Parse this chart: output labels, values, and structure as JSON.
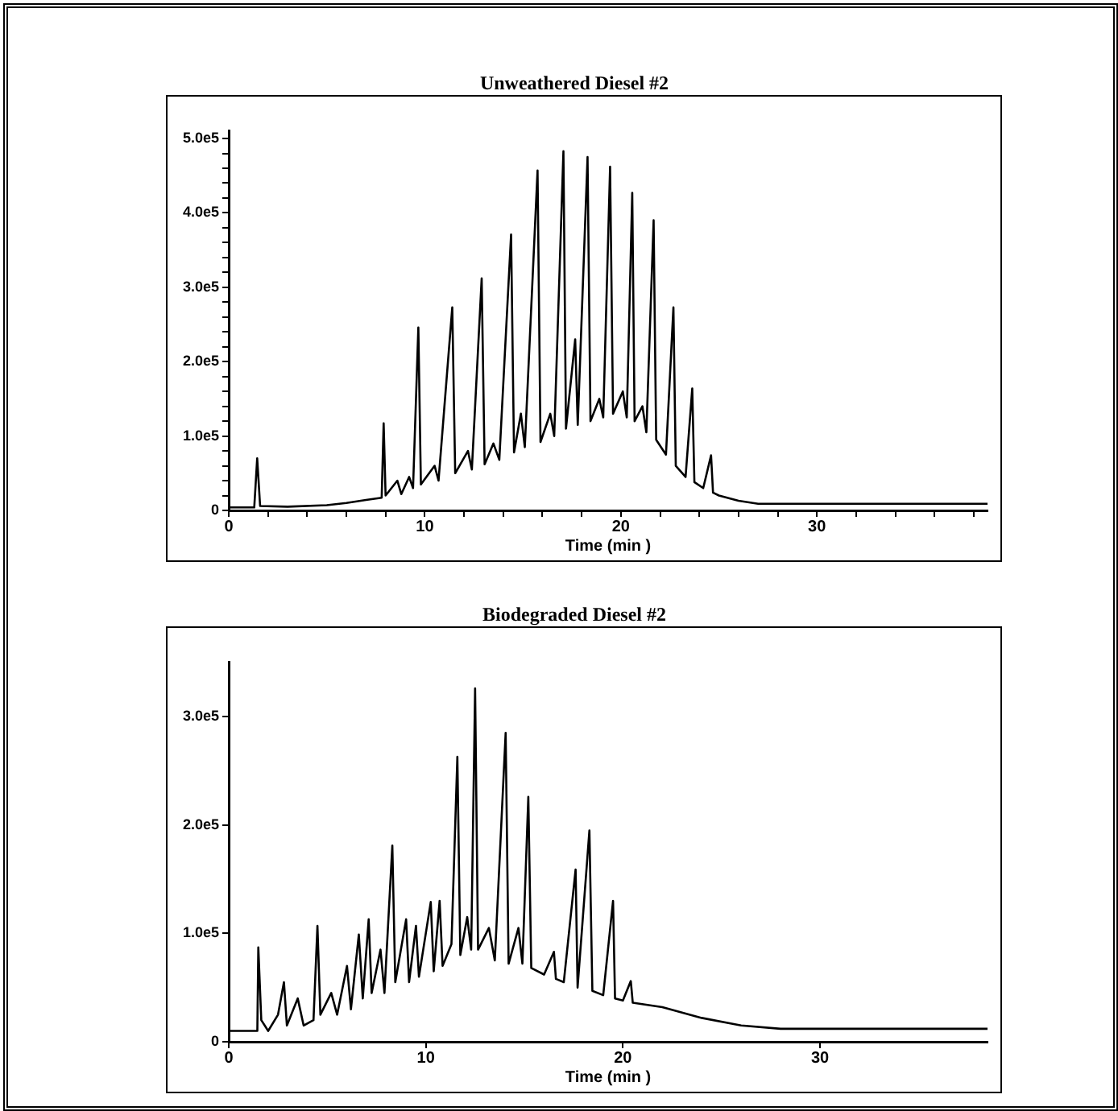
{
  "chart_data": [
    {
      "type": "line",
      "title": "Unweathered Diesel #2",
      "xlabel": "Time (min )",
      "xlim": [
        0,
        38.7
      ],
      "ylim": [
        0,
        510000
      ],
      "xticks": [
        0,
        {
          "value": 2,
          "label": null
        },
        {
          "value": 4,
          "label": null
        },
        {
          "value": 6,
          "label": null
        },
        {
          "value": 8,
          "label": null
        },
        10,
        {
          "value": 12,
          "label": null
        },
        {
          "value": 14,
          "label": null
        },
        {
          "value": 16,
          "label": null
        },
        {
          "value": 18,
          "label": null
        },
        20,
        {
          "value": 22,
          "label": null
        },
        {
          "value": 24,
          "label": null
        },
        {
          "value": 26,
          "label": null
        },
        {
          "value": 28,
          "label": null
        },
        30,
        {
          "value": 32,
          "label": null
        },
        {
          "value": 34,
          "label": null
        },
        {
          "value": 36,
          "label": null
        },
        {
          "value": 38,
          "label": null
        }
      ],
      "yticks": [
        0,
        {
          "value": 20000,
          "label": null
        },
        {
          "value": 40000,
          "label": null
        },
        {
          "value": 60000,
          "label": null
        },
        {
          "value": 80000,
          "label": null
        },
        {
          "value": 100000,
          "label": "1.0e5"
        },
        {
          "value": 120000,
          "label": null
        },
        {
          "value": 140000,
          "label": null
        },
        {
          "value": 160000,
          "label": null
        },
        {
          "value": 180000,
          "label": null
        },
        {
          "value": 200000,
          "label": "2.0e5"
        },
        {
          "value": 220000,
          "label": null
        },
        {
          "value": 240000,
          "label": null
        },
        {
          "value": 260000,
          "label": null
        },
        {
          "value": 280000,
          "label": null
        },
        {
          "value": 300000,
          "label": "3.0e5"
        },
        {
          "value": 320000,
          "label": null
        },
        {
          "value": 340000,
          "label": null
        },
        {
          "value": 360000,
          "label": null
        },
        {
          "value": 380000,
          "label": null
        },
        {
          "value": 400000,
          "label": "4.0e5"
        },
        {
          "value": 420000,
          "label": null
        },
        {
          "value": 440000,
          "label": null
        },
        {
          "value": 460000,
          "label": null
        },
        {
          "value": 480000,
          "label": null
        },
        {
          "value": 500000,
          "label": "5.0e5"
        }
      ],
      "series": [
        {
          "color": "#000000",
          "x": [
            0,
            1.3,
            1.45,
            1.6,
            3,
            5,
            6,
            7,
            7.8,
            7.9,
            8.0,
            8.6,
            8.8,
            9.2,
            9.4,
            9.67,
            9.8,
            10.5,
            10.7,
            11.4,
            11.55,
            12.2,
            12.4,
            12.9,
            13.05,
            13.5,
            13.8,
            14.4,
            14.55,
            14.9,
            15.1,
            15.75,
            15.9,
            16.4,
            16.6,
            17.07,
            17.2,
            17.67,
            17.8,
            18.3,
            18.45,
            18.9,
            19.1,
            19.45,
            19.6,
            20.1,
            20.3,
            20.58,
            20.7,
            21.1,
            21.3,
            21.67,
            21.8,
            22.3,
            22.68,
            22.8,
            23.3,
            23.64,
            23.75,
            24.2,
            24.6,
            24.7,
            25,
            26,
            27,
            38.7
          ],
          "values": [
            4000,
            4000,
            70000,
            6000,
            5000,
            7000,
            10000,
            14000,
            17000,
            117000,
            20000,
            40000,
            22000,
            45000,
            30000,
            246000,
            35000,
            60000,
            40000,
            273000,
            50000,
            80000,
            55000,
            312000,
            62000,
            90000,
            68000,
            371000,
            78000,
            130000,
            85000,
            457000,
            92000,
            130000,
            100000,
            483000,
            110000,
            230000,
            115000,
            475000,
            120000,
            150000,
            125000,
            462000,
            130000,
            160000,
            125000,
            427000,
            120000,
            140000,
            105000,
            390000,
            95000,
            75000,
            273000,
            60000,
            45000,
            164000,
            38000,
            30000,
            74000,
            24000,
            20000,
            13000,
            9000,
            9000
          ]
        }
      ]
    },
    {
      "type": "line",
      "title": "Biodegraded Diesel #2",
      "xlabel": "Time (min )",
      "xlim": [
        0,
        38.5
      ],
      "ylim": [
        0,
        350000
      ],
      "xticks": [
        0,
        10,
        20,
        30
      ],
      "yticks": [
        0,
        {
          "value": 100000,
          "label": "1.0e5"
        },
        {
          "value": 200000,
          "label": "2.0e5"
        },
        {
          "value": 300000,
          "label": "3.0e5"
        }
      ],
      "series": [
        {
          "color": "#000000",
          "x": [
            0,
            1.45,
            1.5,
            1.65,
            2.0,
            2.5,
            2.8,
            2.95,
            3.5,
            3.8,
            4.3,
            4.5,
            4.65,
            5.2,
            5.5,
            6.0,
            6.2,
            6.6,
            6.8,
            7.1,
            7.25,
            7.7,
            7.9,
            8.3,
            8.45,
            9.0,
            9.15,
            9.5,
            9.65,
            10.25,
            10.4,
            10.7,
            10.85,
            11.3,
            11.6,
            11.75,
            12.1,
            12.3,
            12.5,
            12.65,
            13.2,
            13.5,
            14.05,
            14.2,
            14.7,
            14.9,
            15.2,
            15.35,
            16.0,
            16.5,
            16.6,
            17.0,
            17.6,
            17.7,
            18.3,
            18.45,
            19.0,
            19.5,
            19.6,
            20.0,
            20.4,
            20.5,
            22,
            24,
            26,
            28,
            38.5
          ],
          "values": [
            10000,
            10000,
            87000,
            20000,
            10000,
            25000,
            55000,
            15000,
            40000,
            15000,
            20000,
            107000,
            25000,
            45000,
            25000,
            70000,
            30000,
            99000,
            40000,
            113000,
            45000,
            85000,
            45000,
            181000,
            55000,
            113000,
            55000,
            107000,
            60000,
            129000,
            65000,
            130000,
            70000,
            90000,
            263000,
            80000,
            115000,
            85000,
            326000,
            85000,
            105000,
            75000,
            285000,
            72000,
            105000,
            72000,
            226000,
            68000,
            62000,
            83000,
            58000,
            55000,
            159000,
            50000,
            195000,
            47000,
            43000,
            130000,
            40000,
            38000,
            56000,
            36000,
            32000,
            22000,
            15000,
            12000,
            12000
          ]
        }
      ]
    }
  ]
}
